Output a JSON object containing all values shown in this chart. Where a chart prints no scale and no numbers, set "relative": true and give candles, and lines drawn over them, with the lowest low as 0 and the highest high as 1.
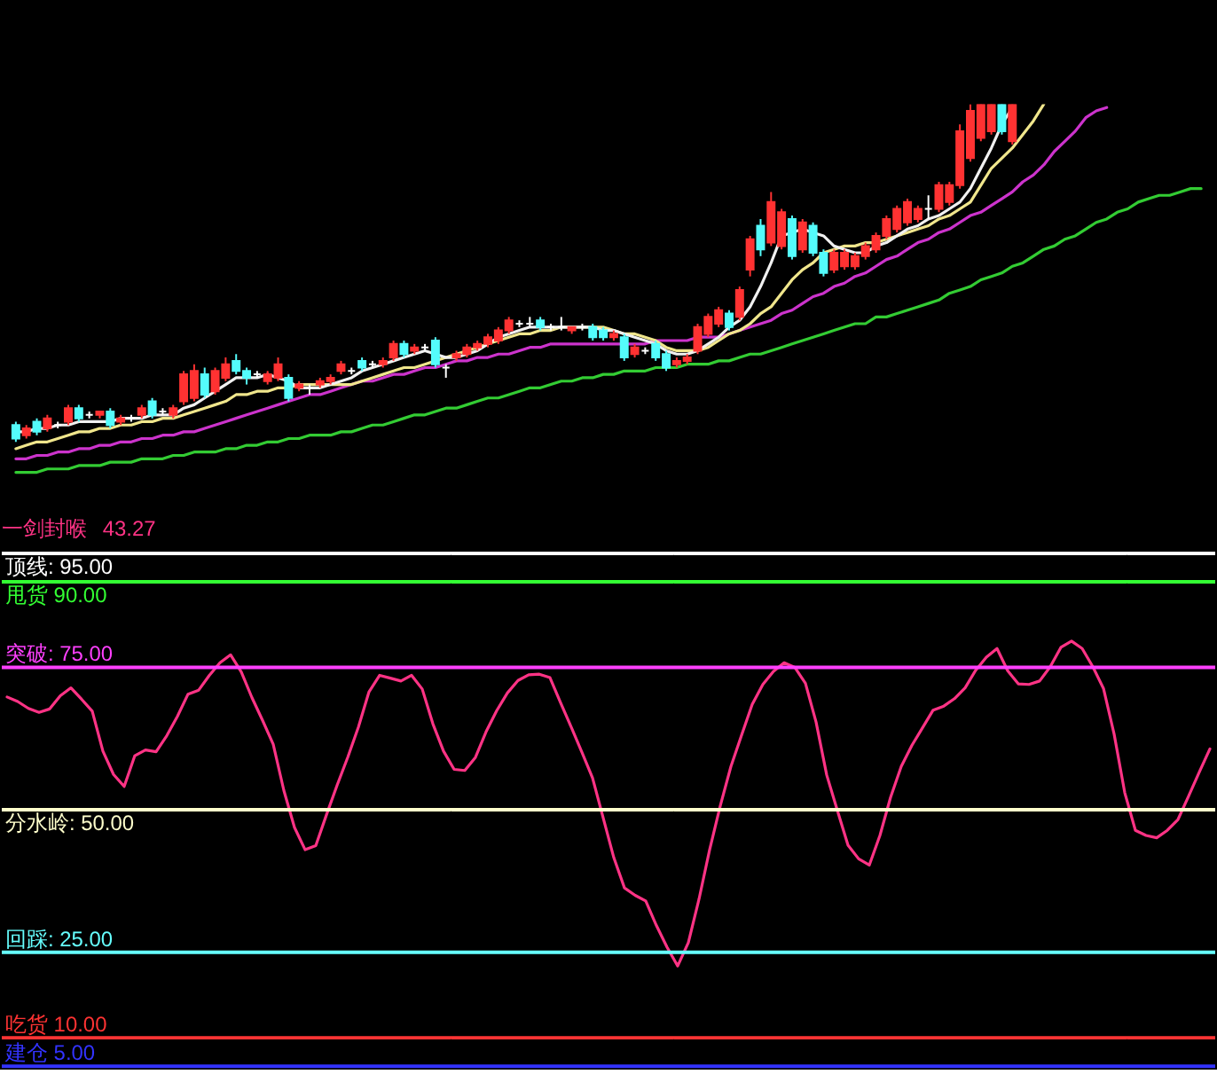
{
  "chart_data": [
    {
      "type": "candlestick",
      "relative": true,
      "tick_labels": false,
      "categories": [
        null,
        null,
        null,
        null,
        null,
        null,
        null,
        null,
        null,
        null,
        null,
        null,
        null,
        null,
        null,
        null,
        null,
        null,
        null,
        null,
        null,
        null,
        null,
        null,
        null,
        null,
        null,
        null,
        null,
        null,
        null,
        null,
        null,
        null,
        null,
        null,
        null,
        null,
        null,
        null,
        null,
        null,
        null,
        null,
        null,
        null,
        null,
        null,
        null,
        null,
        null,
        null,
        null,
        null,
        null,
        null,
        null,
        null,
        null,
        null,
        null,
        null,
        null,
        null,
        null,
        null,
        null,
        null,
        null,
        null,
        null,
        null,
        null,
        null,
        null,
        null,
        null,
        null,
        null,
        null,
        null,
        null,
        null,
        null,
        null,
        null,
        null,
        null,
        null,
        null,
        null,
        null,
        null,
        null,
        null,
        null,
        null,
        null,
        null,
        null,
        null,
        null,
        null,
        null,
        null,
        null,
        null,
        null,
        null,
        null,
        null,
        null,
        null,
        null
      ],
      "ohlc": [
        [
          0.05,
          0.06,
          0.0,
          0.01
        ],
        [
          0.02,
          0.05,
          0.01,
          0.04
        ],
        [
          0.06,
          0.07,
          0.02,
          0.03
        ],
        [
          0.04,
          0.08,
          0.03,
          0.07
        ],
        [
          0.05,
          0.06,
          0.04,
          0.05
        ],
        [
          0.06,
          0.11,
          0.05,
          0.1
        ],
        [
          0.1,
          0.11,
          0.06,
          0.07
        ],
        [
          0.08,
          0.09,
          0.07,
          0.08
        ],
        [
          0.08,
          0.09,
          0.07,
          0.09
        ],
        [
          0.09,
          0.1,
          0.04,
          0.05
        ],
        [
          0.06,
          0.08,
          0.05,
          0.07
        ],
        [
          0.07,
          0.08,
          0.06,
          0.07
        ],
        [
          0.08,
          0.11,
          0.07,
          0.1
        ],
        [
          0.12,
          0.13,
          0.07,
          0.08
        ],
        [
          0.09,
          0.1,
          0.08,
          0.09
        ],
        [
          0.08,
          0.11,
          0.07,
          0.1
        ],
        [
          0.12,
          0.21,
          0.11,
          0.2
        ],
        [
          0.13,
          0.23,
          0.12,
          0.21
        ],
        [
          0.2,
          0.22,
          0.13,
          0.14
        ],
        [
          0.15,
          0.22,
          0.14,
          0.21
        ],
        [
          0.19,
          0.25,
          0.18,
          0.23
        ],
        [
          0.24,
          0.26,
          0.2,
          0.21
        ],
        [
          0.21,
          0.22,
          0.17,
          0.19
        ],
        [
          0.2,
          0.21,
          0.19,
          0.2
        ],
        [
          0.18,
          0.21,
          0.17,
          0.2
        ],
        [
          0.19,
          0.25,
          0.18,
          0.23
        ],
        [
          0.19,
          0.2,
          0.12,
          0.13
        ],
        [
          0.16,
          0.18,
          0.15,
          0.17
        ],
        [
          0.16,
          0.17,
          0.14,
          0.16
        ],
        [
          0.17,
          0.19,
          0.16,
          0.18
        ],
        [
          0.18,
          0.2,
          0.17,
          0.19
        ],
        [
          0.21,
          0.24,
          0.2,
          0.23
        ],
        [
          0.21,
          0.22,
          0.2,
          0.21
        ],
        [
          0.24,
          0.25,
          0.21,
          0.22
        ],
        [
          0.23,
          0.24,
          0.22,
          0.23
        ],
        [
          0.23,
          0.25,
          0.22,
          0.24
        ],
        [
          0.25,
          0.3,
          0.24,
          0.29
        ],
        [
          0.29,
          0.3,
          0.25,
          0.26
        ],
        [
          0.27,
          0.29,
          0.26,
          0.28
        ],
        [
          0.28,
          0.29,
          0.27,
          0.28
        ],
        [
          0.3,
          0.31,
          0.22,
          0.23
        ],
        [
          0.22,
          0.23,
          0.19,
          0.22
        ],
        [
          0.25,
          0.27,
          0.24,
          0.26
        ],
        [
          0.26,
          0.29,
          0.25,
          0.28
        ],
        [
          0.28,
          0.3,
          0.27,
          0.29
        ],
        [
          0.29,
          0.32,
          0.28,
          0.31
        ],
        [
          0.3,
          0.34,
          0.29,
          0.33
        ],
        [
          0.33,
          0.37,
          0.32,
          0.36
        ],
        [
          0.35,
          0.36,
          0.34,
          0.35
        ],
        [
          0.35,
          0.37,
          0.34,
          0.35
        ],
        [
          0.36,
          0.37,
          0.33,
          0.34
        ],
        [
          0.34,
          0.35,
          0.33,
          0.34
        ],
        [
          0.34,
          0.37,
          0.33,
          0.34
        ],
        [
          0.33,
          0.34,
          0.32,
          0.34
        ],
        [
          0.34,
          0.35,
          0.33,
          0.34
        ],
        [
          0.34,
          0.35,
          0.3,
          0.31
        ],
        [
          0.33,
          0.34,
          0.3,
          0.31
        ],
        [
          0.31,
          0.33,
          0.3,
          0.32
        ],
        [
          0.31,
          0.32,
          0.24,
          0.25
        ],
        [
          0.26,
          0.29,
          0.25,
          0.28
        ],
        [
          0.27,
          0.28,
          0.26,
          0.27
        ],
        [
          0.29,
          0.3,
          0.24,
          0.25
        ],
        [
          0.26,
          0.27,
          0.21,
          0.22
        ],
        [
          0.23,
          0.25,
          0.22,
          0.24
        ],
        [
          0.24,
          0.26,
          0.23,
          0.25
        ],
        [
          0.27,
          0.35,
          0.26,
          0.34
        ],
        [
          0.32,
          0.38,
          0.31,
          0.37
        ],
        [
          0.35,
          0.4,
          0.34,
          0.39
        ],
        [
          0.38,
          0.39,
          0.33,
          0.34
        ],
        [
          0.37,
          0.46,
          0.36,
          0.45
        ],
        [
          0.51,
          0.61,
          0.49,
          0.6
        ],
        [
          0.64,
          0.66,
          0.55,
          0.57
        ],
        [
          0.59,
          0.74,
          0.58,
          0.71
        ],
        [
          0.58,
          0.69,
          0.57,
          0.68
        ],
        [
          0.66,
          0.67,
          0.54,
          0.55
        ],
        [
          0.57,
          0.66,
          0.56,
          0.65
        ],
        [
          0.64,
          0.65,
          0.55,
          0.56
        ],
        [
          0.56,
          0.57,
          0.49,
          0.5
        ],
        [
          0.51,
          0.57,
          0.5,
          0.56
        ],
        [
          0.52,
          0.57,
          0.51,
          0.56
        ],
        [
          0.52,
          0.56,
          0.51,
          0.55
        ],
        [
          0.55,
          0.59,
          0.54,
          0.58
        ],
        [
          0.57,
          0.62,
          0.56,
          0.61
        ],
        [
          0.61,
          0.67,
          0.6,
          0.66
        ],
        [
          0.63,
          0.7,
          0.62,
          0.69
        ],
        [
          0.65,
          0.72,
          0.64,
          0.71
        ],
        [
          0.66,
          0.7,
          0.65,
          0.69
        ],
        [
          0.69,
          0.73,
          0.66,
          0.69
        ],
        [
          0.69,
          0.77,
          0.68,
          0.76
        ],
        [
          0.71,
          0.77,
          0.7,
          0.76
        ],
        [
          0.76,
          0.94,
          0.75,
          0.92
        ],
        [
          0.84,
          1,
          0.83,
          0.98
        ],
        [
          0.9,
          1,
          0.89,
          1
        ],
        [
          0.92,
          1,
          0.91,
          1
        ],
        [
          1,
          1,
          0.91,
          0.92
        ],
        [
          0.89,
          1,
          0.88,
          1
        ],
        null,
        null,
        null,
        null,
        null,
        null,
        null,
        null,
        null,
        null,
        null,
        null,
        null,
        null,
        null,
        null,
        null,
        null
      ],
      "colors": [
        "#54fcfc",
        "#ff3232",
        "#54fcfc",
        "#ff3232",
        "#ffffff",
        "#ff3232",
        "#54fcfc",
        "#ffffff",
        "#ff3232",
        "#54fcfc",
        "#ff3232",
        "#ffffff",
        "#ff3232",
        "#54fcfc",
        "#ffffff",
        "#ff3232",
        "#ff3232",
        "#ff3232",
        "#54fcfc",
        "#ff3232",
        "#ff3232",
        "#54fcfc",
        "#54fcfc",
        "#ffffff",
        "#ff3232",
        "#ff3232",
        "#54fcfc",
        "#ff3232",
        "#ffffff",
        "#ff3232",
        "#ff3232",
        "#ff3232",
        "#ffffff",
        "#54fcfc",
        "#ffffff",
        "#ff3232",
        "#ff3232",
        "#54fcfc",
        "#ff3232",
        "#ffffff",
        "#54fcfc",
        "#ffffff",
        "#ff3232",
        "#ff3232",
        "#ff3232",
        "#ff3232",
        "#ff3232",
        "#ff3232",
        "#ffffff",
        "#ffffff",
        "#54fcfc",
        "#ffffff",
        "#ffffff",
        "#ff3232",
        "#ffffff",
        "#54fcfc",
        "#54fcfc",
        "#ff3232",
        "#54fcfc",
        "#ff3232",
        "#ffffff",
        "#54fcfc",
        "#54fcfc",
        "#ff3232",
        "#ff3232",
        "#ff3232",
        "#ff3232",
        "#ff3232",
        "#54fcfc",
        "#ff3232",
        "#ff3232",
        "#54fcfc",
        "#ff3232",
        "#ff3232",
        "#54fcfc",
        "#ff3232",
        "#54fcfc",
        "#54fcfc",
        "#ff3232",
        "#ff3232",
        "#ff3232",
        "#ff3232",
        "#ff3232",
        "#ff3232",
        "#ff3232",
        "#ff3232",
        "#ff3232",
        "#ffffff",
        "#ff3232",
        "#ff3232",
        "#ff3232",
        "#ff3232",
        "#ff3232",
        "#ff3232",
        "#54fcfc",
        "#ff3232",
        null,
        null,
        null,
        null,
        null,
        null,
        null,
        null,
        null,
        null,
        null,
        null,
        null,
        null,
        null,
        null,
        null,
        null
      ],
      "series": [
        {
          "type": "line",
          "color": "#33cc33",
          "values": [
            -0.09,
            -0.09,
            -0.09,
            -0.08,
            -0.08,
            -0.08,
            -0.07,
            -0.07,
            -0.07,
            -0.06,
            -0.06,
            -0.06,
            -0.05,
            -0.05,
            -0.05,
            -0.04,
            -0.04,
            -0.03,
            -0.03,
            -0.03,
            -0.02,
            -0.02,
            -0.01,
            -0.01,
            0.0,
            0.0,
            0.01,
            0.01,
            0.02,
            0.02,
            0.02,
            0.03,
            0.03,
            0.04,
            0.05,
            0.05,
            0.06,
            0.07,
            0.08,
            0.08,
            0.09,
            0.1,
            0.1,
            0.11,
            0.12,
            0.13,
            0.13,
            0.14,
            0.15,
            0.16,
            0.16,
            0.17,
            0.18,
            0.18,
            0.19,
            0.19,
            0.2,
            0.2,
            0.21,
            0.21,
            0.21,
            0.22,
            0.22,
            0.22,
            0.23,
            0.23,
            0.23,
            0.24,
            0.24,
            0.25,
            0.26,
            0.26,
            0.27,
            0.28,
            0.29,
            0.3,
            0.31,
            0.32,
            0.33,
            0.34,
            0.35,
            0.35,
            0.37,
            0.37,
            0.38,
            0.39,
            0.4,
            0.41,
            0.42,
            0.44,
            0.45,
            0.46,
            0.48,
            0.49,
            0.5,
            0.52,
            0.53,
            0.55,
            0.57,
            0.58,
            0.6,
            0.61,
            0.63,
            0.65,
            0.66,
            0.68,
            0.69,
            0.71,
            0.72,
            0.73,
            0.73,
            0.74,
            0.75,
            0.75
          ]
        },
        {
          "type": "line",
          "color": "#cc33cc",
          "values": [
            -0.05,
            -0.05,
            -0.04,
            -0.04,
            -0.03,
            -0.03,
            -0.02,
            -0.02,
            -0.01,
            -0.01,
            0.0,
            0.0,
            0.01,
            0.01,
            0.02,
            0.02,
            0.03,
            0.03,
            0.04,
            0.05,
            0.06,
            0.07,
            0.08,
            0.09,
            0.1,
            0.11,
            0.12,
            0.13,
            0.14,
            0.14,
            0.15,
            0.16,
            0.17,
            0.18,
            0.18,
            0.19,
            0.2,
            0.2,
            0.21,
            0.22,
            0.22,
            0.23,
            0.24,
            0.24,
            0.25,
            0.25,
            0.26,
            0.26,
            0.27,
            0.28,
            0.28,
            0.29,
            0.29,
            0.29,
            0.29,
            0.29,
            0.29,
            0.29,
            0.29,
            0.29,
            0.29,
            0.3,
            0.3,
            0.3,
            0.3,
            0.31,
            0.31,
            0.31,
            0.32,
            0.33,
            0.34,
            0.35,
            0.36,
            0.38,
            0.39,
            0.41,
            0.43,
            0.44,
            0.46,
            0.47,
            0.49,
            0.5,
            0.52,
            0.54,
            0.55,
            0.57,
            0.59,
            0.6,
            0.62,
            0.63,
            0.65,
            0.67,
            0.68,
            0.7,
            0.72,
            0.74,
            0.77,
            0.79,
            0.82,
            0.86,
            0.89,
            0.92,
            0.96,
            0.98,
            0.99,
            null,
            null,
            null,
            null,
            null,
            null,
            null,
            null,
            null
          ]
        },
        {
          "type": "line",
          "color": "#f0e68c",
          "values": [
            -0.02,
            -0.01,
            0.0,
            0.0,
            0.01,
            0.02,
            0.03,
            0.03,
            0.04,
            0.04,
            0.05,
            0.05,
            0.06,
            0.06,
            0.07,
            0.07,
            0.08,
            0.09,
            0.1,
            0.11,
            0.12,
            0.14,
            0.14,
            0.15,
            0.15,
            0.16,
            0.16,
            0.17,
            0.17,
            0.17,
            0.17,
            0.17,
            0.17,
            0.18,
            0.19,
            0.2,
            0.21,
            0.22,
            0.22,
            0.23,
            0.24,
            0.25,
            0.26,
            0.27,
            0.28,
            0.29,
            0.3,
            0.31,
            0.32,
            0.32,
            0.33,
            0.33,
            0.34,
            0.34,
            0.34,
            0.34,
            0.34,
            0.33,
            0.32,
            0.32,
            0.31,
            0.3,
            0.28,
            0.27,
            0.27,
            0.27,
            0.28,
            0.3,
            0.32,
            0.33,
            0.35,
            0.38,
            0.4,
            0.44,
            0.48,
            0.51,
            0.53,
            0.56,
            0.57,
            0.58,
            0.58,
            0.59,
            0.59,
            0.6,
            0.61,
            0.62,
            0.63,
            0.64,
            0.66,
            0.67,
            0.69,
            0.71,
            0.76,
            0.81,
            0.84,
            0.87,
            0.91,
            0.95,
            1.0,
            null,
            null,
            null,
            null,
            null,
            null,
            null,
            null,
            null,
            null,
            null,
            null,
            null,
            null,
            null
          ]
        },
        {
          "type": "line",
          "color": "#f0f0f0",
          "values": [
            0.03,
            0.03,
            0.04,
            0.04,
            0.05,
            0.05,
            0.06,
            0.06,
            0.06,
            0.06,
            0.07,
            0.07,
            0.07,
            0.08,
            0.08,
            0.08,
            0.1,
            0.11,
            0.13,
            0.15,
            0.17,
            0.19,
            0.19,
            0.19,
            0.2,
            0.19,
            0.18,
            0.16,
            0.16,
            0.16,
            0.17,
            0.18,
            0.19,
            0.21,
            0.22,
            0.23,
            0.24,
            0.25,
            0.26,
            0.27,
            0.26,
            0.25,
            0.25,
            0.26,
            0.27,
            0.29,
            0.31,
            0.32,
            0.33,
            0.34,
            0.34,
            0.34,
            0.34,
            0.34,
            0.34,
            0.34,
            0.33,
            0.33,
            0.32,
            0.31,
            0.3,
            0.29,
            0.27,
            0.26,
            0.26,
            0.27,
            0.29,
            0.31,
            0.34,
            0.36,
            0.4,
            0.46,
            0.53,
            0.61,
            0.62,
            0.63,
            0.62,
            0.61,
            0.58,
            0.57,
            0.56,
            0.56,
            0.58,
            0.59,
            0.61,
            0.63,
            0.64,
            0.66,
            0.67,
            0.69,
            0.71,
            0.75,
            0.81,
            0.87,
            0.94,
            0.99,
            null,
            null,
            null,
            null,
            null,
            null,
            null,
            null,
            null,
            null,
            null,
            null,
            null,
            null,
            null,
            null,
            null,
            null
          ]
        }
      ]
    },
    {
      "type": "line",
      "ylim": [
        5,
        95
      ],
      "tick_labels": false,
      "categories": [
        null,
        null,
        null,
        null,
        null,
        null,
        null,
        null,
        null,
        null,
        null,
        null,
        null,
        null,
        null,
        null,
        null,
        null,
        null,
        null,
        null,
        null,
        null,
        null,
        null,
        null,
        null,
        null,
        null,
        null,
        null,
        null,
        null,
        null,
        null,
        null,
        null,
        null,
        null,
        null,
        null,
        null,
        null,
        null,
        null,
        null,
        null,
        null,
        null,
        null,
        null,
        null,
        null,
        null,
        null,
        null,
        null,
        null,
        null,
        null,
        null,
        null,
        null,
        null,
        null,
        null,
        null,
        null,
        null,
        null,
        null,
        null,
        null,
        null,
        null,
        null,
        null,
        null,
        null,
        null,
        null,
        null,
        null,
        null,
        null,
        null,
        null,
        null,
        null,
        null,
        null,
        null,
        null,
        null,
        null,
        null,
        null,
        null,
        null,
        null,
        null,
        null,
        null,
        null,
        null,
        null,
        null,
        null,
        null,
        null,
        null,
        null,
        null,
        null
      ],
      "series": [
        {
          "name": "一剑封喉",
          "color": "#ff3385",
          "values": [
            69.8,
            69.0,
            67.8,
            67.1,
            67.7,
            70.0,
            71.4,
            69.4,
            67.3,
            60.3,
            56.2,
            54.1,
            59.5,
            60.5,
            60.2,
            63.0,
            66.4,
            70.3,
            71.0,
            73.6,
            75.8,
            77.2,
            74.2,
            69.7,
            65.7,
            61.5,
            53.4,
            46.9,
            43.0,
            43.7,
            49.1,
            54.3,
            59.2,
            64.5,
            70.7,
            73.6,
            73.1,
            72.6,
            73.6,
            71.2,
            65.1,
            60.3,
            57.1,
            56.9,
            59.2,
            63.7,
            67.4,
            70.5,
            72.7,
            73.7,
            73.8,
            73.2,
            68.8,
            64.5,
            60.1,
            55.6,
            48.6,
            41.6,
            36.3,
            35.0,
            34.0,
            29.7,
            25.9,
            22.6,
            26.7,
            34.3,
            43.0,
            50.7,
            57.6,
            63.1,
            68.5,
            72.0,
            74.3,
            75.8,
            75.0,
            72.2,
            65.4,
            56.1,
            49.9,
            43.8,
            41.4,
            40.3,
            45.5,
            52.2,
            57.6,
            61.3,
            64.4,
            67.5,
            68.2,
            69.5,
            71.4,
            74.5,
            76.8,
            78.3,
            74.4,
            72.1,
            72.0,
            72.6,
            75.1,
            78.5,
            79.6,
            78.3,
            75.1,
            71.3,
            63.3,
            53.0,
            46.4,
            45.5,
            45.1,
            46.4,
            48.3,
            52.4,
            56.6,
            60.7
          ]
        }
      ],
      "annotations": [
        "43.27"
      ],
      "ref_lines": [
        {
          "axis": "y",
          "value": 90,
          "label": "甩货 90.00",
          "color": "#33ff33"
        },
        {
          "axis": "y",
          "value": 95,
          "label": "顶线: 95.00",
          "color": "#ffffff"
        },
        {
          "axis": "y",
          "value": 75,
          "label": "突破: 75.00",
          "color": "#ff40ff"
        },
        {
          "axis": "y",
          "value": 50,
          "label": "分水岭: 50.00",
          "color": "#ffffcc"
        },
        {
          "axis": "y",
          "value": 25,
          "label": "回踩: 25.00",
          "color": "#66ffff"
        },
        {
          "axis": "y",
          "value": 5,
          "label": "建仓 5.00",
          "color": "#3333ff"
        },
        {
          "axis": "y",
          "value": 10,
          "label": "吃货 10.00",
          "color": "#ff3333"
        }
      ]
    }
  ]
}
